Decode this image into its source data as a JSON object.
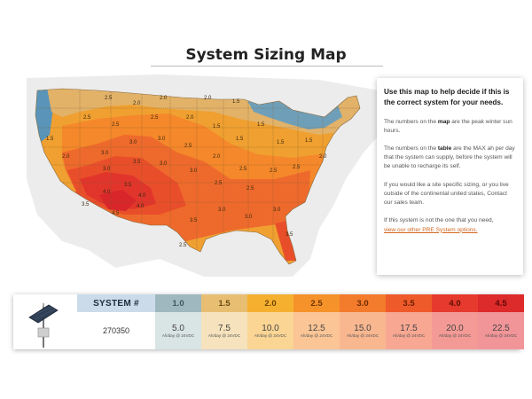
{
  "page": {
    "title": "System Sizing Map"
  },
  "map": {
    "labels": [
      "1.5",
      "2.0",
      "2.5",
      "3.0",
      "3.5",
      "4.0",
      "4.5"
    ],
    "colors": {
      "c1_0": "#5a94b8",
      "c1_5": "#e2b269",
      "c2_0": "#f0a030",
      "c2_5": "#f5882a",
      "c3_0": "#ee6a2c",
      "c3_5": "#e94e2a",
      "c4_0": "#e1352c",
      "c4_5": "#d8262a",
      "land": "#e8e8e8"
    }
  },
  "info_panel": {
    "lead": "Use this map to help decide if this is the correct system for your needs.",
    "p1_a": "The numbers on the ",
    "p1_b": "map",
    "p1_c": " are the peak winter sun hours.",
    "p2_a": "The numbers on the ",
    "p2_b": "table",
    "p2_c": " are the MAX ah per day that the system can supply, before the system will be unable to recharge its self.",
    "p3": "If you would like a site specific sizing, or you live outside of the continental united states, Contact our sales team.",
    "p4": "If this system is not the one that you need,",
    "link": "view our other PRE System options."
  },
  "sizing_table": {
    "system_label": "SYSTEM #",
    "system_number": "270350",
    "columns": [
      {
        "hours": "1.0",
        "ah": "5.0",
        "unit": "Ah/day @ 24VDC",
        "head_color": "#9fb8c0",
        "head_text": "#3c5660",
        "body_color": "#d9e4e4"
      },
      {
        "hours": "1.5",
        "ah": "7.5",
        "unit": "Ah/day @ 24VDC",
        "head_color": "#e8bf72",
        "head_text": "#6a4a12",
        "body_color": "#f6e2bd"
      },
      {
        "hours": "2.0",
        "ah": "10.0",
        "unit": "Ah/day @ 24VDC",
        "head_color": "#f5b030",
        "head_text": "#6e4600",
        "body_color": "#fad594"
      },
      {
        "hours": "2.5",
        "ah": "12.5",
        "unit": "Ah/day @ 24VDC",
        "head_color": "#f6922a",
        "head_text": "#6e3500",
        "body_color": "#fbc596"
      },
      {
        "hours": "3.0",
        "ah": "15.0",
        "unit": "Ah/day @ 24VDC",
        "head_color": "#f37b2c",
        "head_text": "#6e2a00",
        "body_color": "#f9b790"
      },
      {
        "hours": "3.5",
        "ah": "17.5",
        "unit": "Ah/day @ 24VDC",
        "head_color": "#ef5a2b",
        "head_text": "#6a1e00",
        "body_color": "#f7a792"
      },
      {
        "hours": "4.0",
        "ah": "20.0",
        "unit": "Ah/day @ 24VDC",
        "head_color": "#e63a2e",
        "head_text": "#5e0e00",
        "body_color": "#f49a96"
      },
      {
        "hours": "4.5",
        "ah": "22.5",
        "unit": "Ah/day @ 24VDC",
        "head_color": "#dd2a2a",
        "head_text": "#5e0808",
        "body_color": "#f19598"
      }
    ]
  }
}
